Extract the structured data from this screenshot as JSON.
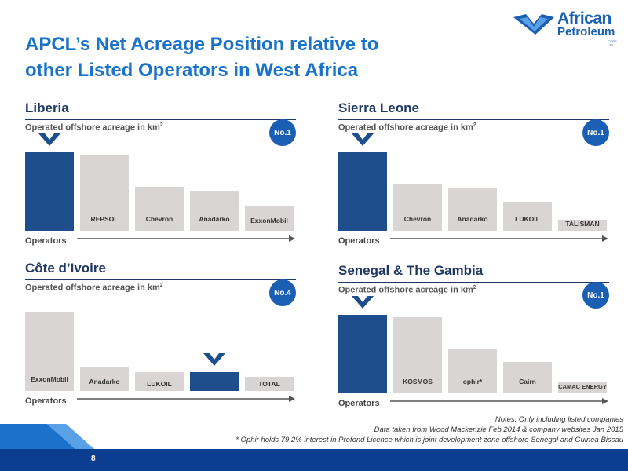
{
  "slide": {
    "title_line1": "APCL’s Net Acreage Position relative to",
    "title_line2": "other Listed Operators in West Africa",
    "page_number": "8",
    "logo": {
      "line1": "African",
      "line2": "Petroleum",
      "line3": "CORP LTD"
    },
    "notes": [
      "Notes: Only including listed companies",
      "Data taken from Wood Mackenzie Feb 2014 & company websites Jan 2015",
      "* Ophir holds 79.2% interest in Profond Licence which is joint development zone offshore Senegal and Guinea Bissau"
    ],
    "colors": {
      "accent": "#1a73c8",
      "navy": "#1f3864",
      "bar_highlight": "#1f4e8c",
      "bar_grey": "#d9d5d5",
      "footer": "#0b3d91"
    }
  },
  "chart_data": [
    {
      "type": "bar",
      "title": "Liberia",
      "ylabel": "Operated offshore acreage in km",
      "ylabel_sup": "2",
      "xlabel": "Operators",
      "rank_badge": "No.1",
      "categories": [
        "African Petroleum",
        "Repsol",
        "Chevron",
        "Anadarko",
        "ExxonMobil"
      ],
      "category_labels": [
        "",
        "REPSOL",
        "Chevron",
        "Anadarko",
        "ExxonMobil"
      ],
      "values": [
        100,
        96,
        56,
        51,
        32
      ],
      "highlight_index": 0
    },
    {
      "type": "bar",
      "title": "Sierra Leone",
      "ylabel": "Operated offshore acreage in km",
      "ylabel_sup": "2",
      "xlabel": "Operators",
      "rank_badge": "No.1",
      "categories": [
        "African Petroleum",
        "Chevron",
        "Anadarko",
        "Lukoil",
        "Talisman"
      ],
      "category_labels": [
        "",
        "Chevron",
        "Anadarko",
        "LUKOIL",
        "TALISMAN"
      ],
      "values": [
        100,
        60,
        55,
        37,
        14
      ],
      "highlight_index": 0
    },
    {
      "type": "bar",
      "title": "Côte d’Ivoire",
      "ylabel": "Operated offshore acreage in km",
      "ylabel_sup": "2",
      "xlabel": "Operators",
      "rank_badge": "No.4",
      "categories": [
        "ExxonMobil",
        "Anadarko",
        "Lukoil",
        "African Petroleum",
        "Total"
      ],
      "category_labels": [
        "ExxonMobil",
        "Anadarko",
        "LUKOIL",
        "",
        "TOTAL"
      ],
      "values": [
        100,
        31,
        24,
        24,
        18
      ],
      "highlight_index": 3
    },
    {
      "type": "bar",
      "title": "Senegal & The Gambia",
      "ylabel": "Operated offshore acreage in km",
      "ylabel_sup": "2",
      "xlabel": "Operators",
      "rank_badge": "No.1",
      "categories": [
        "African Petroleum",
        "Kosmos Energy",
        "Ophir*",
        "Cairn",
        "CAMAC Energy"
      ],
      "category_labels": [
        "",
        "KOSMOS",
        "ophir*",
        "Cairn",
        "CAMAC ENERGY"
      ],
      "values": [
        100,
        97,
        56,
        40,
        15
      ],
      "highlight_index": 0
    }
  ]
}
